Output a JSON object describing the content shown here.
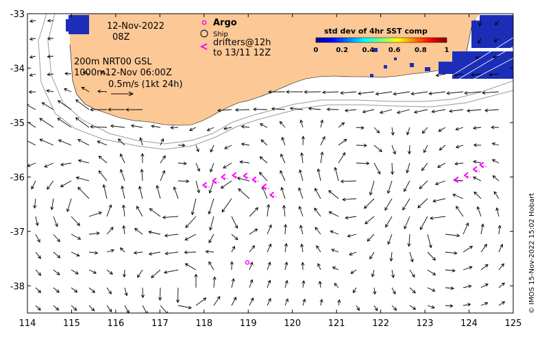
{
  "map": {
    "lon_range": [
      114,
      125
    ],
    "lat_range": [
      -38.5,
      -33
    ],
    "x_ticks": [
      "114",
      "115",
      "116",
      "117",
      "118",
      "119",
      "120",
      "121",
      "122",
      "123",
      "124",
      "125"
    ],
    "y_ticks": [
      "-33",
      "-34",
      "-35",
      "-36",
      "-37",
      "-38"
    ],
    "land_color": "#fcc896",
    "arrow_color": "#000000",
    "isobath_color": "#999999",
    "marker_color": "#ff00ff"
  },
  "labels": {
    "date": "12-Nov-2022",
    "time": "08Z",
    "depth_line1": "200m  NRT00 GSL",
    "depth_line2": "1000m12-Nov 06:00Z",
    "scale_text": "0.5m/s (1kt 24h)"
  },
  "legend": {
    "argo": "Argo",
    "ship": "Ship",
    "drifters_line1": "drifters@12h",
    "drifters_line2": "to 13/11 12Z"
  },
  "colorbar": {
    "title": "std dev of 4hr SST comp",
    "ticks": [
      "0",
      "0.2",
      "0.4",
      "0.6",
      "0.8",
      "1"
    ],
    "min": 0,
    "max": 1
  },
  "credit": "© IMOS 15-Nov-2022 15:02 Hobart",
  "argo_float": {
    "lon": 118.98,
    "lat": -37.57
  },
  "drifters": [
    {
      "lon": 119.5,
      "lat": -36.33
    },
    {
      "lon": 119.33,
      "lat": -36.18
    },
    {
      "lon": 119.1,
      "lat": -36.05
    },
    {
      "lon": 118.9,
      "lat": -35.98
    },
    {
      "lon": 118.65,
      "lat": -35.97
    },
    {
      "lon": 118.4,
      "lat": -36.0
    },
    {
      "lon": 118.2,
      "lat": -36.07
    },
    {
      "lon": 117.98,
      "lat": -36.15
    },
    {
      "lon": 123.68,
      "lat": -36.05
    },
    {
      "lon": 123.9,
      "lat": -35.97
    },
    {
      "lon": 124.1,
      "lat": -35.86
    },
    {
      "lon": 124.25,
      "lat": -35.78
    }
  ]
}
